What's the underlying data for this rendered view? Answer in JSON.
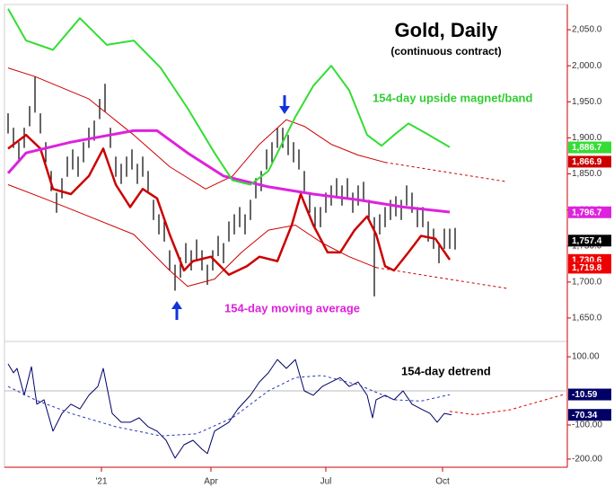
{
  "chart_data": [
    {
      "type": "ohlc",
      "title": "Gold, Daily",
      "subtitle": "(continuous contract)",
      "xlim": [
        0,
        314
      ],
      "ylim": [
        1617.5,
        2085
      ],
      "yticks": [
        {
          "value": 2050,
          "label": "2,050.0"
        },
        {
          "value": 2000,
          "label": "2,000.0"
        },
        {
          "value": 1950,
          "label": "1,950.0"
        },
        {
          "value": 1900,
          "label": "1,900.0"
        },
        {
          "value": 1850,
          "label": "1,850.0"
        },
        {
          "value": 1800,
          "label": "1,800.0"
        },
        {
          "value": 1750,
          "label": "1,750.0"
        },
        {
          "value": 1700,
          "label": "1,700.0"
        },
        {
          "value": 1650,
          "label": "1,650.0"
        }
      ],
      "bar_color": "#000000",
      "x": [
        2,
        5,
        8,
        11,
        14,
        17,
        20,
        23,
        26,
        29,
        32,
        35,
        38,
        41,
        44,
        47,
        50,
        53,
        56,
        59,
        62,
        65,
        68,
        71,
        74,
        77,
        80,
        83,
        86,
        89,
        92,
        95,
        98,
        101,
        104,
        107,
        110,
        113,
        116,
        119,
        122,
        125,
        128,
        131,
        134,
        137,
        140,
        143,
        146,
        149,
        152,
        155,
        158,
        161,
        164,
        167,
        170,
        173,
        176,
        179,
        182,
        185,
        188,
        191,
        194,
        197,
        200,
        203,
        206,
        209,
        212,
        215,
        218,
        221,
        224,
        227,
        230,
        233,
        236,
        239,
        242,
        245,
        248,
        251
      ],
      "high": [
        1934,
        1914,
        1894,
        1914,
        1944,
        1985,
        1934,
        1894,
        1854,
        1824,
        1844,
        1874,
        1884,
        1874,
        1894,
        1914,
        1924,
        1954,
        1975,
        1914,
        1874,
        1864,
        1874,
        1884,
        1864,
        1874,
        1854,
        1814,
        1794,
        1784,
        1744,
        1724,
        1734,
        1754,
        1744,
        1759,
        1744,
        1724,
        1744,
        1764,
        1754,
        1784,
        1794,
        1804,
        1794,
        1814,
        1844,
        1854,
        1884,
        1894,
        1914,
        1914,
        1904,
        1894,
        1884,
        1854,
        1824,
        1804,
        1804,
        1824,
        1834,
        1844,
        1834,
        1844,
        1824,
        1834,
        1839,
        1814,
        1790,
        1794,
        1804,
        1814,
        1819,
        1814,
        1834,
        1824,
        1804,
        1804,
        1784,
        1774,
        1754,
        1774,
        1774,
        1775
      ],
      "low": [
        1906,
        1886,
        1866,
        1886,
        1916,
        1935,
        1906,
        1866,
        1826,
        1796,
        1816,
        1846,
        1856,
        1846,
        1866,
        1886,
        1896,
        1926,
        1936,
        1886,
        1846,
        1836,
        1846,
        1856,
        1836,
        1846,
        1826,
        1786,
        1766,
        1756,
        1716,
        1688,
        1706,
        1726,
        1716,
        1731,
        1716,
        1696,
        1716,
        1736,
        1726,
        1756,
        1766,
        1776,
        1766,
        1786,
        1816,
        1826,
        1856,
        1866,
        1886,
        1886,
        1876,
        1866,
        1856,
        1826,
        1796,
        1776,
        1776,
        1796,
        1806,
        1816,
        1806,
        1816,
        1796,
        1806,
        1811,
        1786,
        1680,
        1766,
        1776,
        1786,
        1791,
        1786,
        1806,
        1796,
        1776,
        1776,
        1756,
        1746,
        1726,
        1746,
        1746,
        1745
      ],
      "series": [
        {
          "color": "#cc0000",
          "line_width": 1,
          "dash": false,
          "x": [
            2,
            17,
            47,
            72,
            92,
            112,
            127,
            142,
            157,
            167,
            182,
            197,
            212
          ],
          "values": [
            1997,
            1985,
            1954,
            1904,
            1860,
            1829,
            1847,
            1891,
            1925,
            1916,
            1891,
            1876,
            1866
          ]
        },
        {
          "color": "#cc0000",
          "line_width": 1,
          "dash": true,
          "x": [
            212,
            280
          ],
          "values": [
            1866,
            1839
          ]
        },
        {
          "color": "#cc0000",
          "line_width": 1,
          "dash": false,
          "x": [
            2,
            22,
            47,
            72,
            92,
            102,
            117,
            132,
            147,
            162,
            177,
            192,
            207
          ],
          "values": [
            1835,
            1816,
            1791,
            1766,
            1716,
            1694,
            1704,
            1741,
            1772,
            1779,
            1754,
            1735,
            1720
          ]
        },
        {
          "color": "#cc0000",
          "line_width": 1,
          "dash": true,
          "x": [
            207,
            280
          ],
          "values": [
            1720,
            1691
          ]
        },
        {
          "color": "#cc0000",
          "line_width": 2.5,
          "dash": false,
          "x": [
            2,
            12,
            20,
            27,
            37,
            47,
            55,
            62,
            70,
            77,
            85,
            92,
            100,
            105,
            115,
            125,
            135,
            142,
            152,
            160,
            165,
            172,
            180,
            187,
            195,
            202,
            207,
            212,
            217,
            225,
            232,
            240,
            248
          ],
          "values": [
            1885,
            1904,
            1885,
            1829,
            1822,
            1847,
            1885,
            1835,
            1804,
            1829,
            1816,
            1766,
            1716,
            1729,
            1735,
            1710,
            1722,
            1735,
            1729,
            1779,
            1822,
            1779,
            1741,
            1741,
            1772,
            1791,
            1766,
            1722,
            1716,
            1741,
            1764,
            1760,
            1731
          ]
        },
        {
          "color": "#dd22dd",
          "line_width": 3,
          "dash": false,
          "x": [
            2,
            12,
            37,
            72,
            85,
            102,
            122,
            147,
            172,
            197,
            222,
            248
          ],
          "values": [
            1851,
            1879,
            1894,
            1910,
            1910,
            1879,
            1847,
            1832,
            1822,
            1814,
            1804,
            1797
          ]
        },
        {
          "color": "#33dd33",
          "line_width": 2,
          "dash": false,
          "x": [
            2,
            12,
            27,
            42,
            57,
            72,
            87,
            102,
            117,
            127,
            137,
            147,
            162,
            172,
            182,
            192,
            202,
            210,
            217,
            225,
            235,
            248
          ],
          "values": [
            2079,
            2035,
            2022,
            2066,
            2029,
            2035,
            1997,
            1941,
            1879,
            1841,
            1835,
            1854,
            1929,
            1972,
            2000,
            1966,
            1904,
            1889,
            1904,
            1920,
            1906,
            1887
          ]
        }
      ],
      "annotations": [
        {
          "text": "154-day upside magnet/band",
          "color": "#33cc33"
        },
        {
          "text": "154-day moving average",
          "color": "#dd22dd"
        }
      ],
      "end_labels": [
        {
          "value": 1886.7,
          "label": "1,886.7",
          "color": "#33dd33"
        },
        {
          "value": 1866.9,
          "label": "1,866.9",
          "color": "#cc0000"
        },
        {
          "value": 1796.7,
          "label": "1,796.7",
          "color": "#dd22dd"
        },
        {
          "value": 1757.4,
          "label": "1,757.4",
          "color": "#000000"
        },
        {
          "value": 1730.6,
          "label": "1,730.6",
          "color": "#ee0000"
        },
        {
          "value": 1719.8,
          "label": "1,719.8",
          "color": "#ee0000"
        }
      ]
    },
    {
      "type": "line",
      "xlim": [
        0,
        314
      ],
      "ylim": [
        -224,
        145
      ],
      "xticks": [
        {
          "value": 54,
          "label": "'21"
        },
        {
          "value": 115,
          "label": "Apr"
        },
        {
          "value": 179,
          "label": "Jul"
        },
        {
          "value": 244,
          "label": "Oct"
        }
      ],
      "yticks": [
        {
          "value": 100,
          "label": "100.00"
        },
        {
          "value": -100,
          "label": "-100.00"
        },
        {
          "value": -200,
          "label": "-200.00"
        }
      ],
      "reference_line": 0,
      "series": [
        {
          "color": "#000066",
          "line_width": 1,
          "dash": false,
          "x": [
            2,
            5,
            7,
            11,
            15,
            18,
            22,
            27,
            32,
            37,
            42,
            47,
            52,
            55,
            60,
            65,
            70,
            75,
            80,
            85,
            90,
            95,
            100,
            105,
            110,
            113,
            117,
            125,
            130,
            137,
            142,
            147,
            152,
            157,
            162,
            167,
            172,
            177,
            182,
            187,
            192,
            197,
            202,
            205,
            207,
            212,
            217,
            222,
            227,
            232,
            237,
            241,
            245,
            249
          ],
          "values": [
            79,
            53,
            66,
            -13,
            71,
            -39,
            -26,
            -118,
            -66,
            -39,
            -53,
            -13,
            13,
            66,
            -66,
            -92,
            -92,
            -79,
            -105,
            -118,
            -145,
            -197,
            -158,
            -145,
            -171,
            -184,
            -118,
            -92,
            -53,
            -13,
            26,
            53,
            92,
            66,
            92,
            0,
            -13,
            13,
            26,
            39,
            13,
            26,
            -13,
            -79,
            -26,
            -13,
            -26,
            0,
            -39,
            -53,
            -66,
            -92,
            -66,
            -70
          ]
        },
        {
          "color": "#2233bb",
          "line_width": 1,
          "dash": true,
          "x": [
            2,
            17,
            37,
            62,
            87,
            107,
            127,
            147,
            162,
            177,
            197,
            217,
            232,
            248
          ],
          "values": [
            13,
            -26,
            -66,
            -105,
            -132,
            -126,
            -79,
            0,
            39,
            45,
            18,
            -26,
            -30,
            -11
          ]
        },
        {
          "color": "#dd0000",
          "line_width": 1,
          "dash": true,
          "x": [
            248,
            262,
            282,
            302,
            312
          ],
          "values": [
            -60,
            -70,
            -55,
            -25,
            -10
          ]
        }
      ],
      "annotations": [
        {
          "text": "154-day detrend",
          "color": "#000000"
        }
      ],
      "end_labels": [
        {
          "value": -10.59,
          "label": "-10.59",
          "color": "#000066"
        },
        {
          "value": -70.34,
          "label": "-70.34",
          "color": "#000066"
        }
      ]
    }
  ]
}
